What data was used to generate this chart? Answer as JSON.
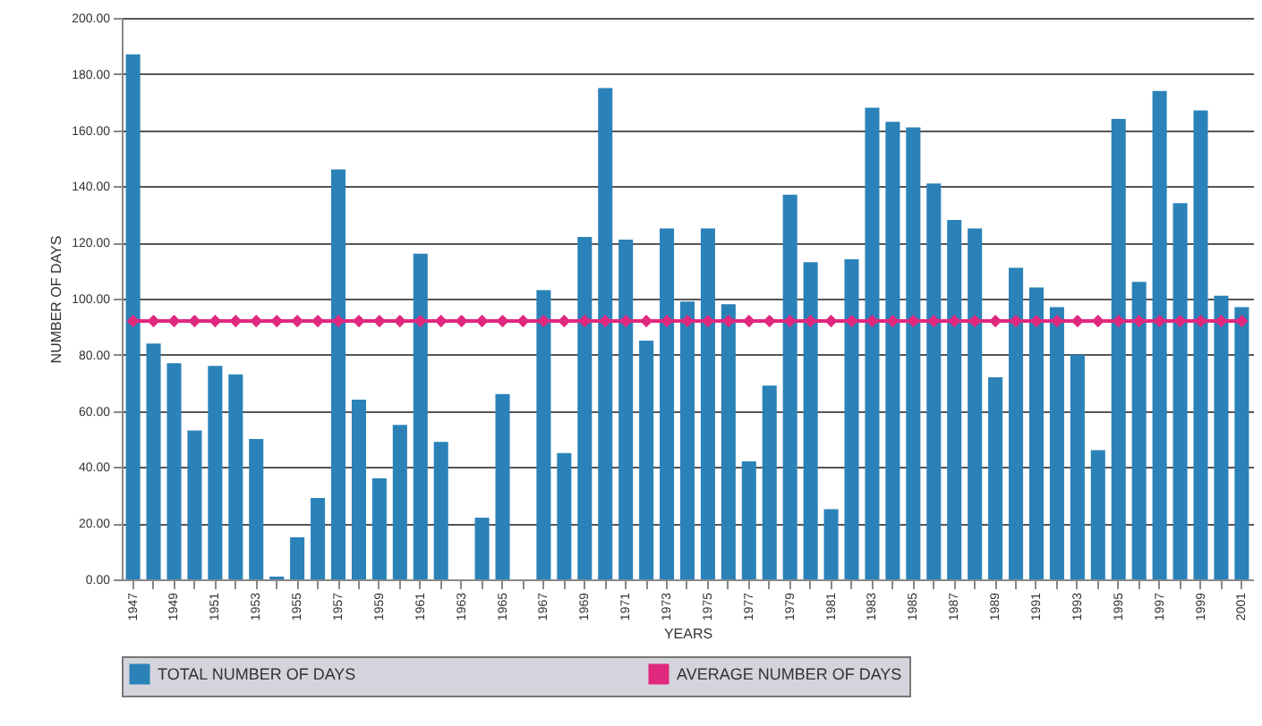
{
  "chart_data": {
    "type": "bar",
    "xlabel": "YEARS",
    "ylabel": "NUMBER OF DAYS",
    "categories": [
      "1947",
      null,
      "1949",
      null,
      "1951",
      null,
      "1953",
      null,
      "1955",
      null,
      "1957",
      null,
      "1959",
      null,
      "1961",
      null,
      "1963",
      null,
      "1965",
      null,
      "1967",
      null,
      "1969",
      null,
      "1971",
      null,
      "1973",
      null,
      "1975",
      null,
      "1977",
      null,
      "1979",
      null,
      "1981",
      null,
      "1983",
      null,
      "1985",
      null,
      "1987",
      null,
      "1989",
      null,
      "1991",
      null,
      "1993",
      null,
      "1995",
      null,
      "1997",
      null,
      "1999",
      null,
      "2001"
    ],
    "series": [
      {
        "name": "TOTAL NUMBER OF DAYS",
        "color": "#2b82b8",
        "values": [
          187,
          84,
          77,
          53,
          76,
          73,
          50,
          1,
          15,
          29,
          146,
          64,
          36,
          55,
          116,
          49,
          0,
          22,
          66,
          0,
          103,
          45,
          122,
          175,
          121,
          85,
          125,
          99,
          125,
          98,
          42,
          69,
          137,
          113,
          25,
          114,
          168,
          163,
          161,
          141,
          128,
          125,
          72,
          111,
          104,
          97,
          80,
          46,
          164,
          106,
          174,
          134,
          167,
          101,
          97
        ]
      },
      {
        "name": "AVERAGE NUMBER OF DAYS",
        "type": "line",
        "color": "#e0287f",
        "marker": "diamond",
        "values": [
          92,
          92,
          92,
          92,
          92,
          92,
          92,
          92,
          92,
          92,
          92,
          92,
          92,
          92,
          92,
          92,
          92,
          92,
          92,
          92,
          92,
          92,
          92,
          92,
          92,
          92,
          92,
          92,
          92,
          92,
          92,
          92,
          92,
          92,
          92,
          92,
          92,
          92,
          92,
          92,
          92,
          92,
          92,
          92,
          92,
          92,
          92,
          92,
          92,
          92,
          92,
          92,
          92,
          92,
          92
        ]
      }
    ],
    "ylim": [
      0,
      200
    ],
    "yticks": [
      {
        "value": 0,
        "label": "0.00"
      },
      {
        "value": 20,
        "label": "20.00"
      },
      {
        "value": 40,
        "label": "40.00"
      },
      {
        "value": 60,
        "label": "60.00"
      },
      {
        "value": 80,
        "label": "80.00"
      },
      {
        "value": 100,
        "label": "100.00"
      },
      {
        "value": 120,
        "label": "120.00"
      },
      {
        "value": 140,
        "label": "140.00"
      },
      {
        "value": 160,
        "label": "160.00"
      },
      {
        "value": 180,
        "label": "180.00"
      },
      {
        "value": 200,
        "label": "200.00"
      }
    ],
    "grid": "y",
    "legend": "bottom"
  }
}
